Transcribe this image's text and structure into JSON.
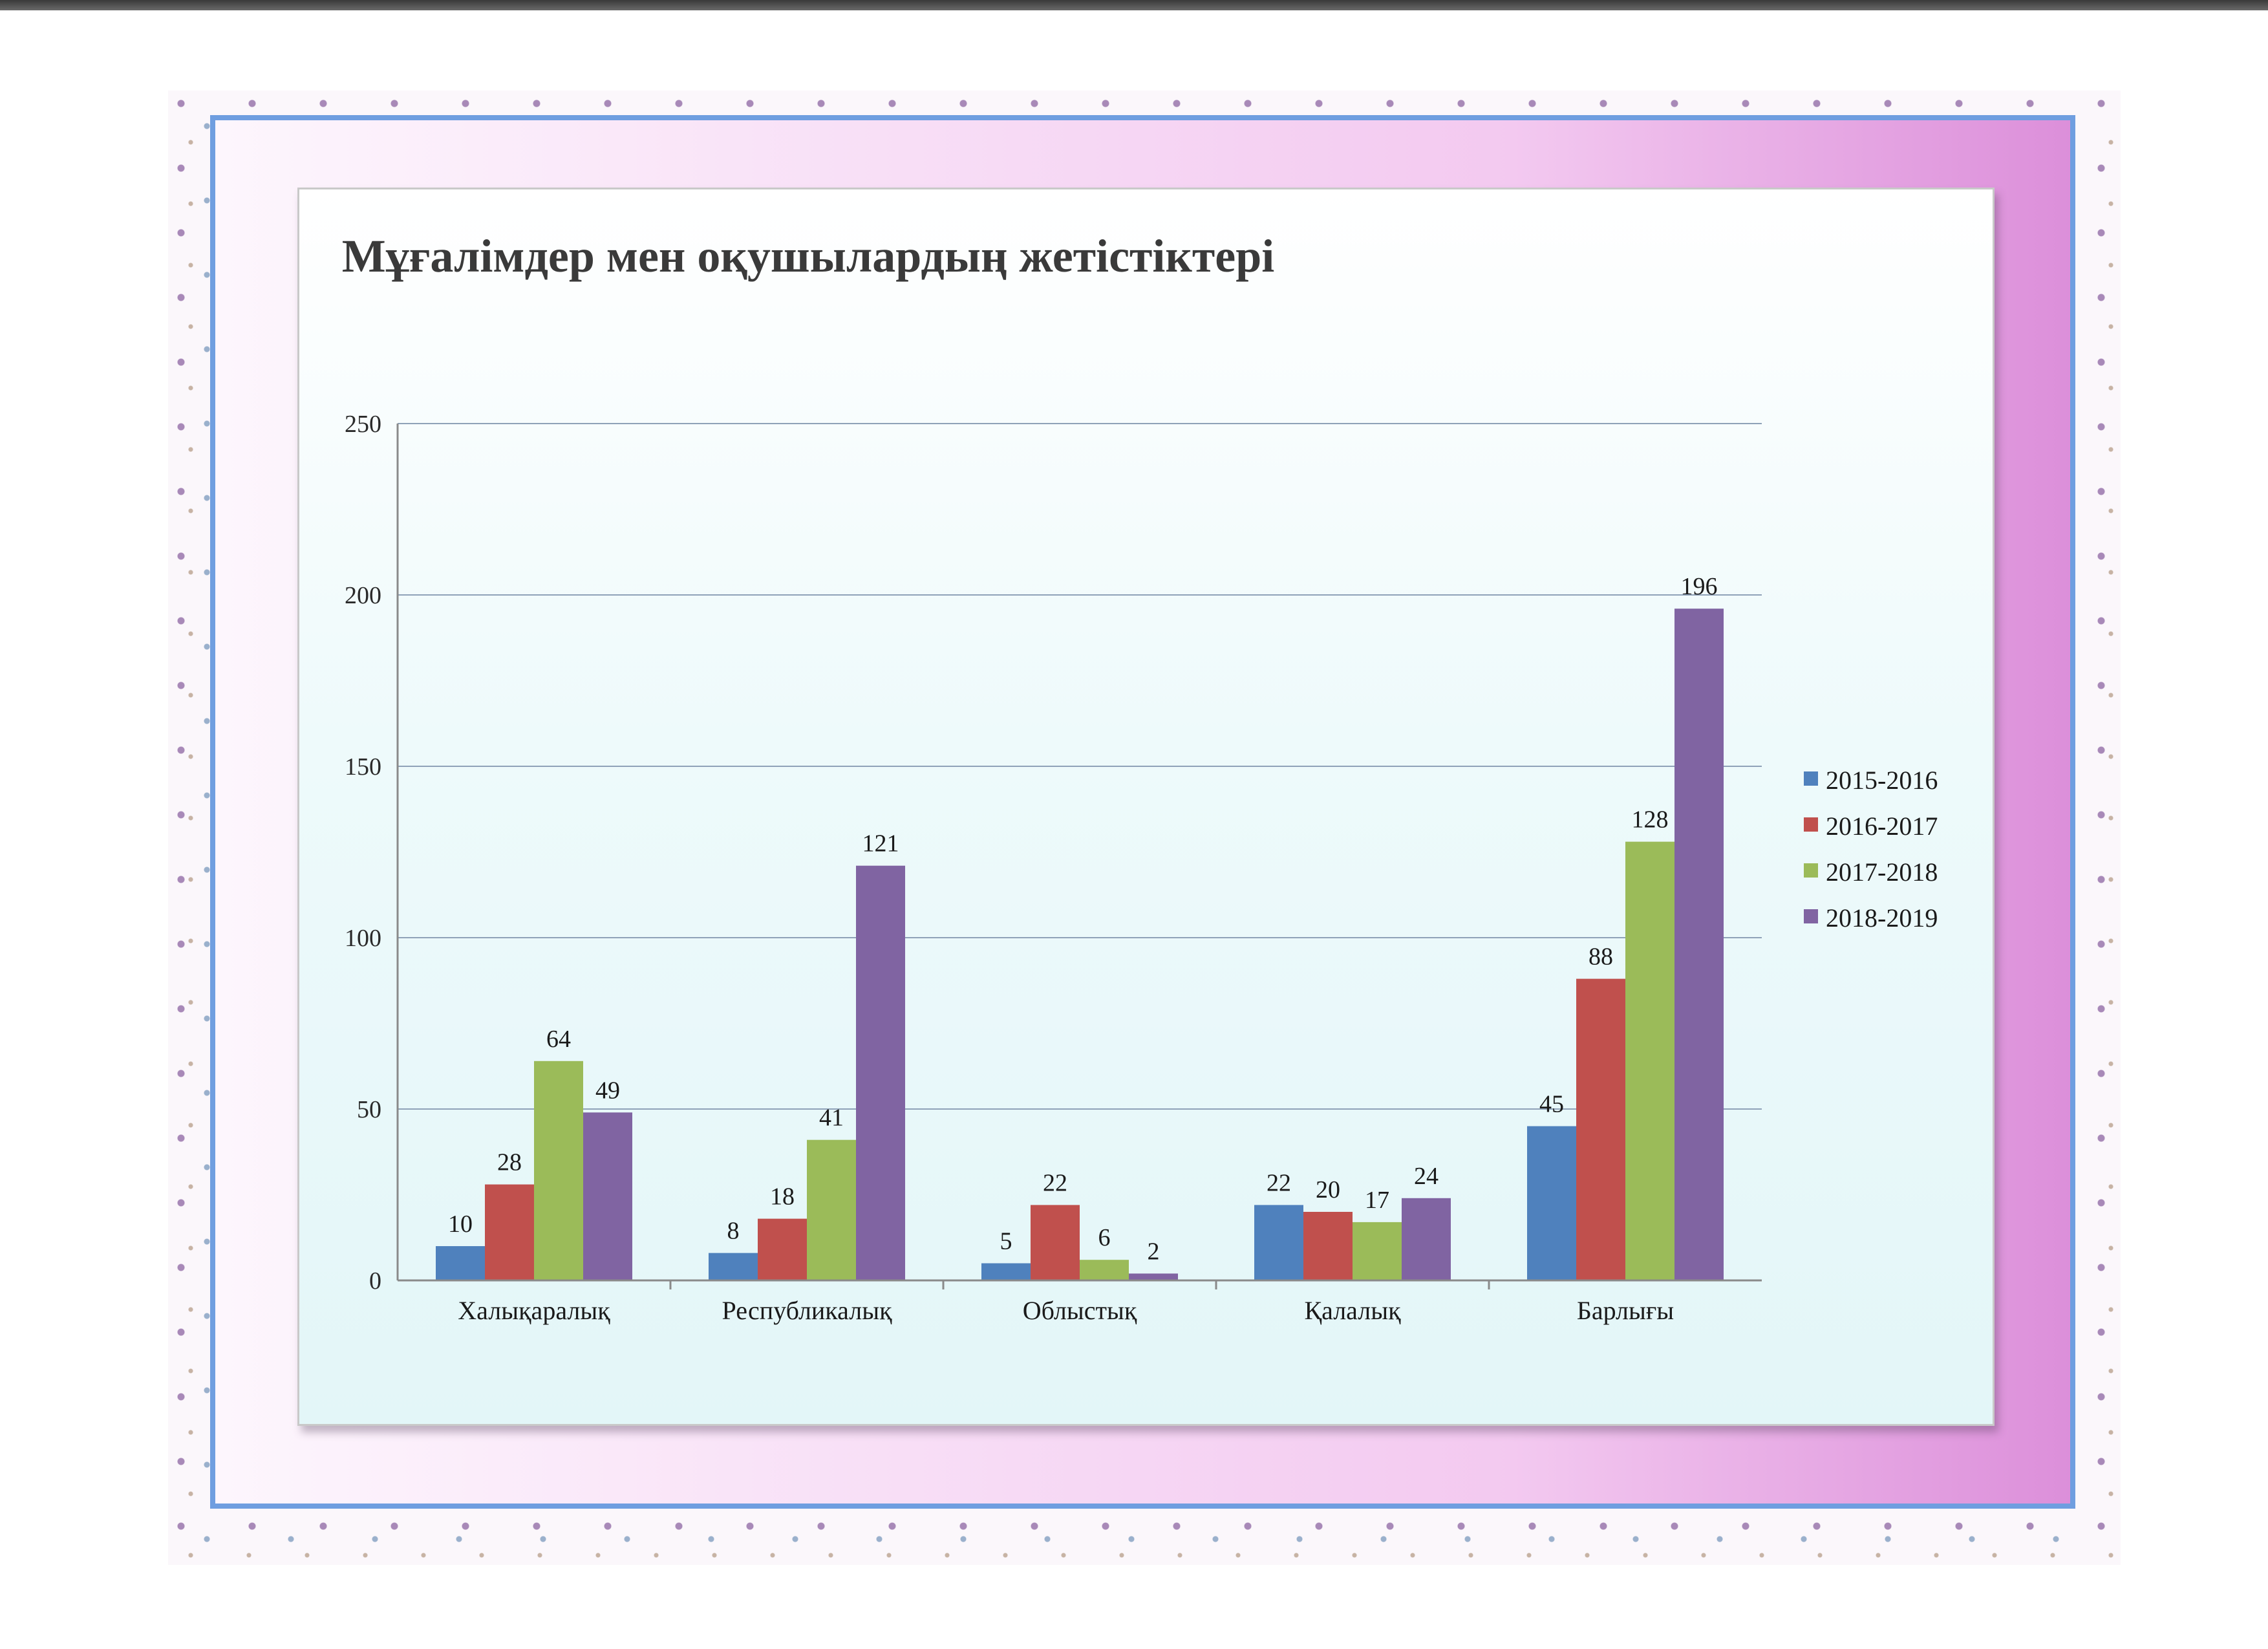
{
  "chart_data": {
    "type": "bar",
    "title": "Мұғалімдер мен оқушылардың жетістіктері",
    "xlabel": "",
    "ylabel": "",
    "ylim": [
      0,
      250
    ],
    "yticks": [
      "0",
      "50",
      "100",
      "150",
      "200",
      "250"
    ],
    "grid": true,
    "legend_position": "right",
    "categories": [
      "Халықаралық",
      "Республикалық",
      "Облыстық",
      "Қалалық",
      "Барлығы"
    ],
    "series": [
      {
        "name": "2015-2016",
        "color": "#4f81bd",
        "values": [
          10,
          8,
          5,
          22,
          45
        ]
      },
      {
        "name": "2016-2017",
        "color": "#c0504d",
        "values": [
          28,
          18,
          22,
          20,
          88
        ]
      },
      {
        "name": "2017-2018",
        "color": "#9bbb59",
        "values": [
          64,
          41,
          6,
          17,
          128
        ]
      },
      {
        "name": "2018-2019",
        "color": "#8064a2",
        "values": [
          49,
          121,
          2,
          24,
          196
        ]
      }
    ]
  }
}
